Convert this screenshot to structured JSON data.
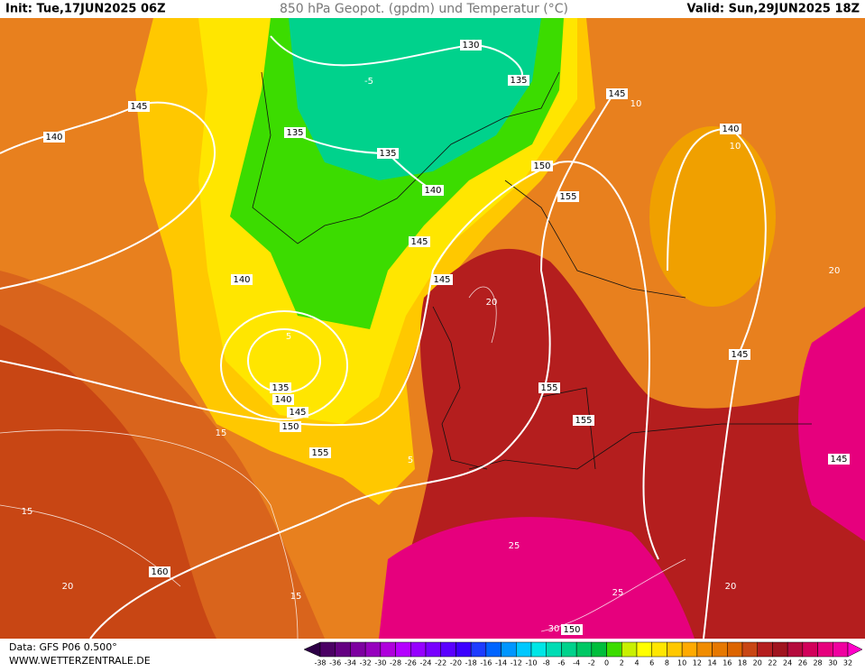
{
  "header": {
    "init": "Init: Tue,17JUN2025 06Z",
    "title": "850 hPa Geopot. (gpdm) und Temperatur (°C)",
    "valid": "Valid: Sun,29JUN2025 18Z"
  },
  "map": {
    "geopotential_labels": [
      130,
      135,
      145,
      145,
      140,
      135,
      135,
      140,
      150,
      155,
      140,
      145,
      140,
      145,
      135,
      140,
      145,
      150,
      155,
      155,
      155,
      145,
      145,
      160,
      150
    ],
    "temperature_labels": [
      -5,
      5,
      15,
      20,
      25,
      30,
      10,
      15,
      20,
      15,
      25,
      20,
      5,
      10,
      20
    ]
  },
  "legend": {
    "ticks": [
      -38,
      -36,
      -34,
      -32,
      -30,
      -28,
      -26,
      -24,
      -22,
      -20,
      -18,
      -16,
      -14,
      -12,
      -10,
      -8,
      -6,
      -4,
      -2,
      0,
      2,
      4,
      6,
      8,
      10,
      12,
      14,
      16,
      18,
      20,
      22,
      24,
      26,
      28,
      30,
      32
    ],
    "colors": [
      "#2d0046",
      "#4b0064",
      "#640082",
      "#7d00a0",
      "#9600be",
      "#af00dc",
      "#b400ff",
      "#9600ff",
      "#7800ff",
      "#5a00ff",
      "#3c00ff",
      "#1e3cff",
      "#0064ff",
      "#0096ff",
      "#00c8ff",
      "#00e6e6",
      "#00dcb4",
      "#00d28c",
      "#00c864",
      "#00be3c",
      "#3cdc00",
      "#c8f000",
      "#ffff00",
      "#ffe600",
      "#ffc800",
      "#ffaa00",
      "#f08c00",
      "#e67800",
      "#dc6400",
      "#c84614",
      "#b41e1e",
      "#a0141e",
      "#b40a3c",
      "#d2005a",
      "#e6007d",
      "#f000a0",
      "#ff00c8"
    ]
  },
  "footer": {
    "data": "Data: GFS P06 0.500°",
    "site": "WWW.WETTERZENTRALE.DE"
  }
}
